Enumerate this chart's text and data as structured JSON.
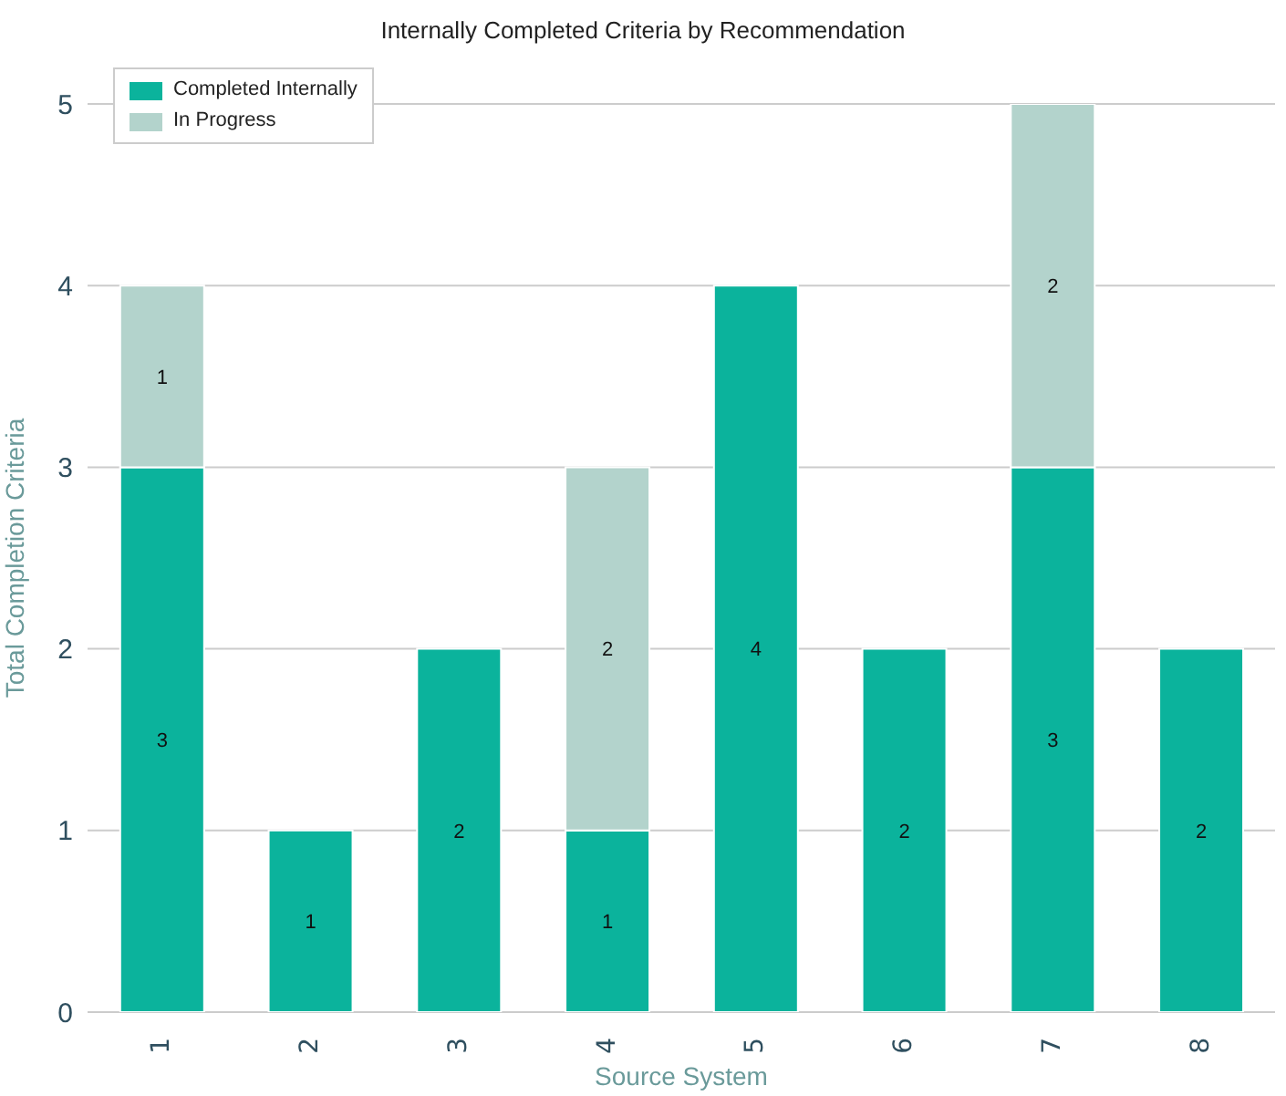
{
  "chart_data": {
    "type": "bar",
    "title": "Internally Completed Criteria by Recommendation",
    "xlabel": "Source System",
    "ylabel": "Total Completion Criteria",
    "categories": [
      "1",
      "2",
      "3",
      "4",
      "5",
      "6",
      "7",
      "8"
    ],
    "series": [
      {
        "name": "Completed Internally",
        "color": "#0bb39c",
        "values": [
          3,
          1,
          2,
          1,
          4,
          2,
          3,
          2
        ]
      },
      {
        "name": "In Progress",
        "color": "#b3d3cc",
        "values": [
          1,
          null,
          null,
          2,
          null,
          null,
          2,
          null
        ]
      }
    ],
    "stacked": true,
    "ylim": [
      0,
      5
    ],
    "yticks": [
      0,
      1,
      2,
      3,
      4,
      5
    ],
    "grid": "y",
    "legend": "top left",
    "data_labels": true
  }
}
